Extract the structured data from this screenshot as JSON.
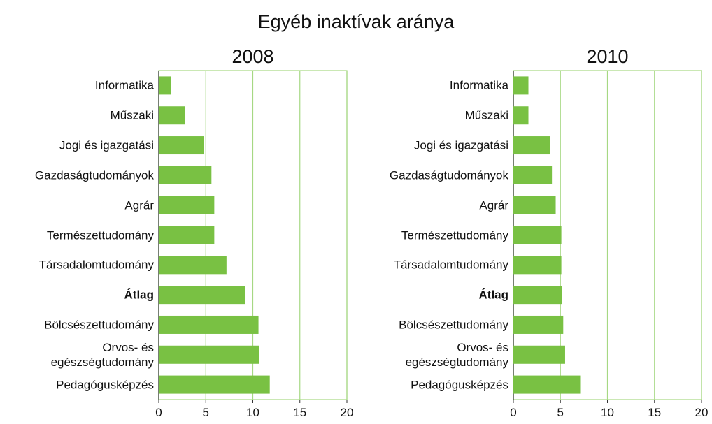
{
  "title": "Egyéb inaktívak aránya",
  "chart_data": [
    {
      "type": "barh",
      "title": "2008",
      "categories": [
        "Informatika",
        "Műszaki",
        "Jogi és igazgatási",
        "Gazdaságtudományok",
        "Agrár",
        "Természettudomány",
        "Társadalomtudomány",
        "Átlag",
        "Bölcsészettudomány",
        "Orvos- és\negészségtudomány",
        "Pedagógusképzés"
      ],
      "values": [
        1.3,
        2.8,
        4.8,
        5.6,
        5.9,
        5.9,
        7.2,
        9.2,
        10.6,
        10.7,
        11.8
      ],
      "color": "#79c143",
      "bold_category_index": 7,
      "xlim": [
        0,
        20
      ],
      "xticks": [
        0,
        5,
        10,
        15,
        20
      ],
      "grid": true
    },
    {
      "type": "barh",
      "title": "2010",
      "categories": [
        "Informatika",
        "Műszaki",
        "Jogi és igazgatási",
        "Gazdaságtudományok",
        "Agrár",
        "Természettudomány",
        "Társadalomtudomány",
        "Átlag",
        "Bölcsészettudomány",
        "Orvos- és\negészségtudomány",
        "Pedagógusképzés"
      ],
      "values": [
        1.6,
        1.6,
        3.9,
        4.1,
        4.5,
        5.1,
        5.1,
        5.2,
        5.3,
        5.5,
        7.1
      ],
      "color": "#79c143",
      "bold_category_index": 7,
      "xlim": [
        0,
        20
      ],
      "xticks": [
        0,
        5,
        10,
        15,
        20
      ],
      "grid": true
    }
  ]
}
